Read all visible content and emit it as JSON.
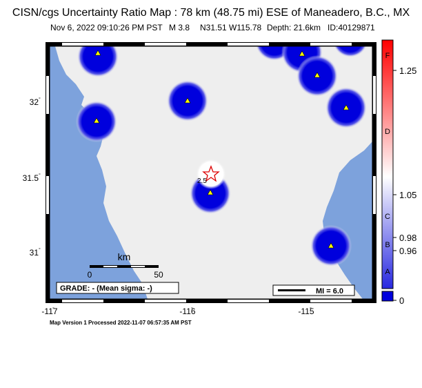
{
  "header": {
    "title": "CISN/cgs Uncertainty Ratio Map : 78 km (48.75 mi) ESE of Maneadero, B.C., MX",
    "date": "Nov  6, 2022 09:10:26 PM PST",
    "magnitude": "M 3.8",
    "location": "N31.51 W115.78",
    "depth": "Depth: 21.6km",
    "event_id": "ID:40129871"
  },
  "map": {
    "lon_labels": [
      "-117",
      "-116",
      "-115"
    ],
    "lat_labels": [
      "32",
      "31.5",
      "31"
    ],
    "degree_symbol": "°",
    "scale_bar": {
      "unit": "km",
      "ticks": [
        "0",
        "50"
      ]
    },
    "grade": "GRADE: - (Mean sigma: -)",
    "mi_legend": "MI = 6.0",
    "epicenter_label": "2.5",
    "colors": {
      "ocean": "#7da2dc",
      "land": "#eeeeee",
      "station_fill": "#0000dd",
      "station_marker": "#ffff00",
      "epicenter": "#dd0000"
    }
  },
  "colorbar": {
    "value_labels": [
      "1.25",
      "1.05",
      "0.98",
      "0.96",
      "0"
    ],
    "grade_letters": [
      "F",
      "D",
      "C",
      "B",
      "A"
    ],
    "colors": {
      "top": "#ff0000",
      "middle": "#ffffff",
      "bottom": "#0000dd"
    }
  },
  "footer": "Map Version 1 Processed 2022-11-07 06:57:35 AM PST"
}
